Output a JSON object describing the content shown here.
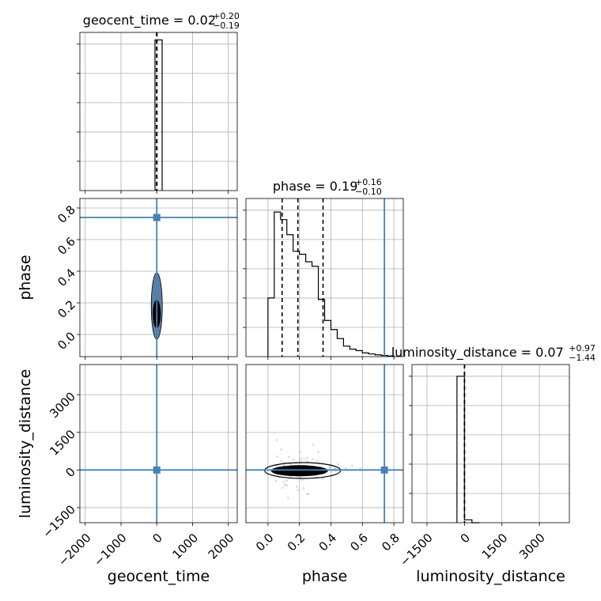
{
  "chart_data": {
    "type": "corner",
    "parameters": [
      {
        "key": "geocent_time",
        "label": "geocent_time",
        "range": [
          -2150,
          2250
        ],
        "ticks": [
          -2000,
          -1000,
          0,
          1000,
          2000
        ],
        "tick_labels": [
          "−2000",
          "−1000",
          "0",
          "1000",
          "2000"
        ],
        "median": 0.02,
        "upper_err": 0.2,
        "lower_err": 0.19,
        "title": {
          "name": "geocent_time",
          "value": "0.02",
          "upper": "+0.20",
          "lower": "−0.19"
        },
        "histogram": {
          "bin_edges": [
            -50,
            150
          ],
          "counts": [
            1.0
          ],
          "ymax": 1.05
        },
        "quantiles": [
          -5,
          0,
          5
        ],
        "truth": 0
      },
      {
        "key": "phase",
        "label": "phase",
        "range": [
          -0.14,
          0.86
        ],
        "ticks": [
          0.0,
          0.2,
          0.4,
          0.6,
          0.8
        ],
        "tick_labels": [
          "0.0",
          "0.2",
          "0.4",
          "0.6",
          "0.8"
        ],
        "median": 0.19,
        "upper_err": 0.16,
        "lower_err": 0.1,
        "title": {
          "name": "phase",
          "value": "0.19",
          "upper": "+0.16",
          "lower": "−0.10"
        },
        "histogram": {
          "bin_edges": [
            0.0,
            0.04,
            0.08,
            0.12,
            0.16,
            0.2,
            0.24,
            0.28,
            0.32,
            0.36,
            0.4,
            0.44,
            0.48,
            0.52,
            0.56,
            0.6,
            0.64,
            0.68,
            0.72,
            0.76,
            0.8
          ],
          "counts": [
            0.39,
            0.96,
            0.91,
            0.81,
            0.7,
            0.68,
            0.63,
            0.6,
            0.38,
            0.24,
            0.18,
            0.12,
            0.07,
            0.05,
            0.04,
            0.025,
            0.018,
            0.012,
            0.008,
            0.005
          ],
          "ymax": 1.05
        },
        "quantiles": [
          0.09,
          0.19,
          0.35
        ],
        "truth": 0.74
      },
      {
        "key": "luminosity_distance",
        "label": "luminosity_distance",
        "range": [
          -2100,
          4200
        ],
        "ticks": [
          -1500,
          0,
          1500,
          3000
        ],
        "tick_labels": [
          "−1500",
          "0",
          "1500",
          "3000"
        ],
        "median": 0.07,
        "upper_err": 0.97,
        "lower_err": 1.44,
        "title": {
          "name": "luminosity_distance",
          "value": "0.07",
          "upper": "+0.97",
          "lower": "−1.44"
        },
        "histogram": {
          "bin_edges": [
            -300,
            0,
            300,
            600
          ],
          "counts": [
            1.0,
            0.02,
            0.0
          ],
          "ymax": 1.08
        },
        "quantiles": [
          -1.4,
          0.07,
          1.0
        ],
        "truth": 0
      }
    ],
    "colors": {
      "truth": "#4682b4",
      "hist": "#000000",
      "grid": "#b0b0b0",
      "samples": "#9a9a9a"
    },
    "grid": true
  }
}
